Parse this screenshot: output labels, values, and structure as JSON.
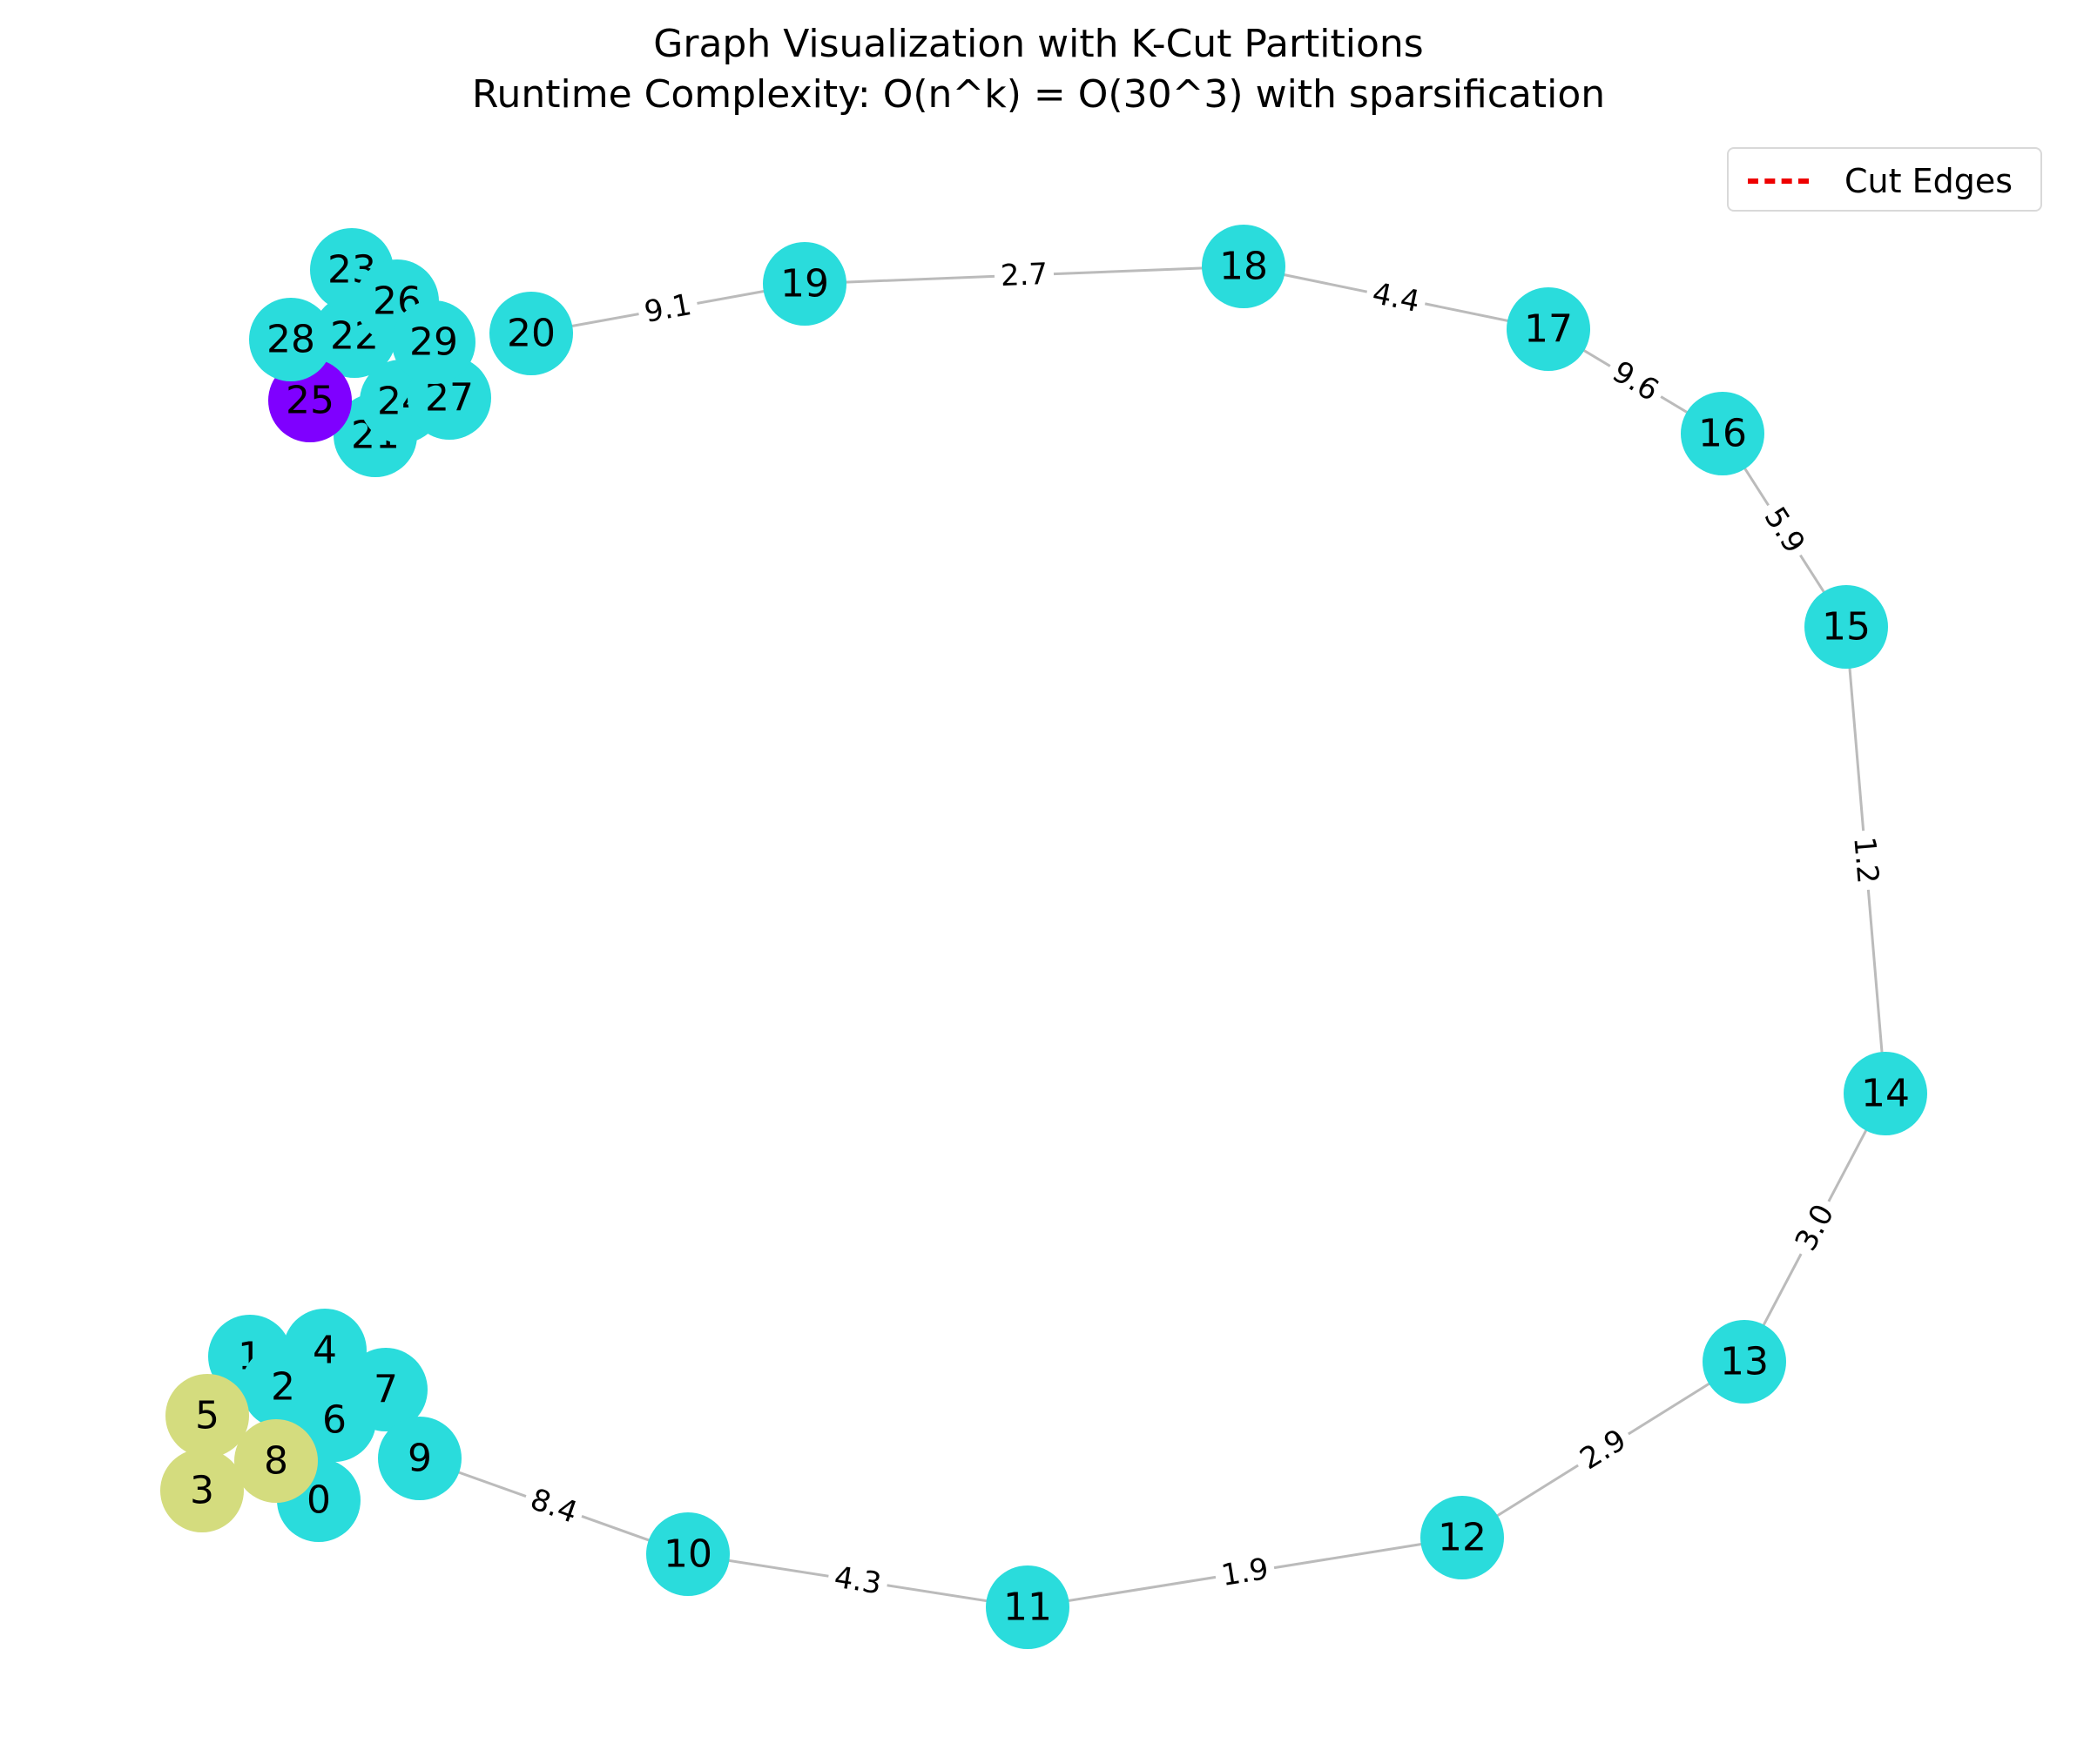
{
  "title": {
    "line1": "Graph Visualization with K-Cut Partitions",
    "line2": "Runtime Complexity: O(n^k) = O(30^3) with sparsification"
  },
  "legend": {
    "label": "Cut Edges",
    "color": "#ee0000"
  },
  "colors": {
    "partition_cyan": "#2adcdc",
    "partition_olive": "#d4dc7e",
    "partition_purple": "#7f00ff",
    "edge": "#bbbbbb"
  },
  "chart_data": {
    "type": "graph",
    "nodes": [
      {
        "id": "0",
        "partition": "cyan"
      },
      {
        "id": "1",
        "partition": "cyan"
      },
      {
        "id": "2",
        "partition": "cyan"
      },
      {
        "id": "3",
        "partition": "olive"
      },
      {
        "id": "4",
        "partition": "cyan"
      },
      {
        "id": "5",
        "partition": "olive"
      },
      {
        "id": "6",
        "partition": "cyan"
      },
      {
        "id": "7",
        "partition": "cyan"
      },
      {
        "id": "8",
        "partition": "olive"
      },
      {
        "id": "9",
        "partition": "cyan"
      },
      {
        "id": "10",
        "partition": "cyan"
      },
      {
        "id": "11",
        "partition": "cyan"
      },
      {
        "id": "12",
        "partition": "cyan"
      },
      {
        "id": "13",
        "partition": "cyan"
      },
      {
        "id": "14",
        "partition": "cyan"
      },
      {
        "id": "15",
        "partition": "cyan"
      },
      {
        "id": "16",
        "partition": "cyan"
      },
      {
        "id": "17",
        "partition": "cyan"
      },
      {
        "id": "18",
        "partition": "cyan"
      },
      {
        "id": "19",
        "partition": "cyan"
      },
      {
        "id": "20",
        "partition": "cyan"
      },
      {
        "id": "21",
        "partition": "cyan"
      },
      {
        "id": "22",
        "partition": "cyan"
      },
      {
        "id": "23",
        "partition": "cyan"
      },
      {
        "id": "24",
        "partition": "cyan"
      },
      {
        "id": "25",
        "partition": "purple"
      },
      {
        "id": "26",
        "partition": "cyan"
      },
      {
        "id": "27",
        "partition": "cyan"
      },
      {
        "id": "28",
        "partition": "cyan"
      },
      {
        "id": "29",
        "partition": "cyan"
      }
    ],
    "edges": [
      {
        "source": "9",
        "target": "10",
        "weight": "8.4"
      },
      {
        "source": "10",
        "target": "11",
        "weight": "4.3"
      },
      {
        "source": "11",
        "target": "12",
        "weight": "1.9"
      },
      {
        "source": "12",
        "target": "13",
        "weight": "2.9"
      },
      {
        "source": "13",
        "target": "14",
        "weight": "3.0"
      },
      {
        "source": "14",
        "target": "15",
        "weight": "1.2"
      },
      {
        "source": "15",
        "target": "16",
        "weight": "5.9"
      },
      {
        "source": "16",
        "target": "17",
        "weight": "9.6"
      },
      {
        "source": "17",
        "target": "18",
        "weight": "4.4"
      },
      {
        "source": "18",
        "target": "19",
        "weight": "2.7"
      },
      {
        "source": "19",
        "target": "20",
        "weight": "9.1"
      }
    ]
  }
}
